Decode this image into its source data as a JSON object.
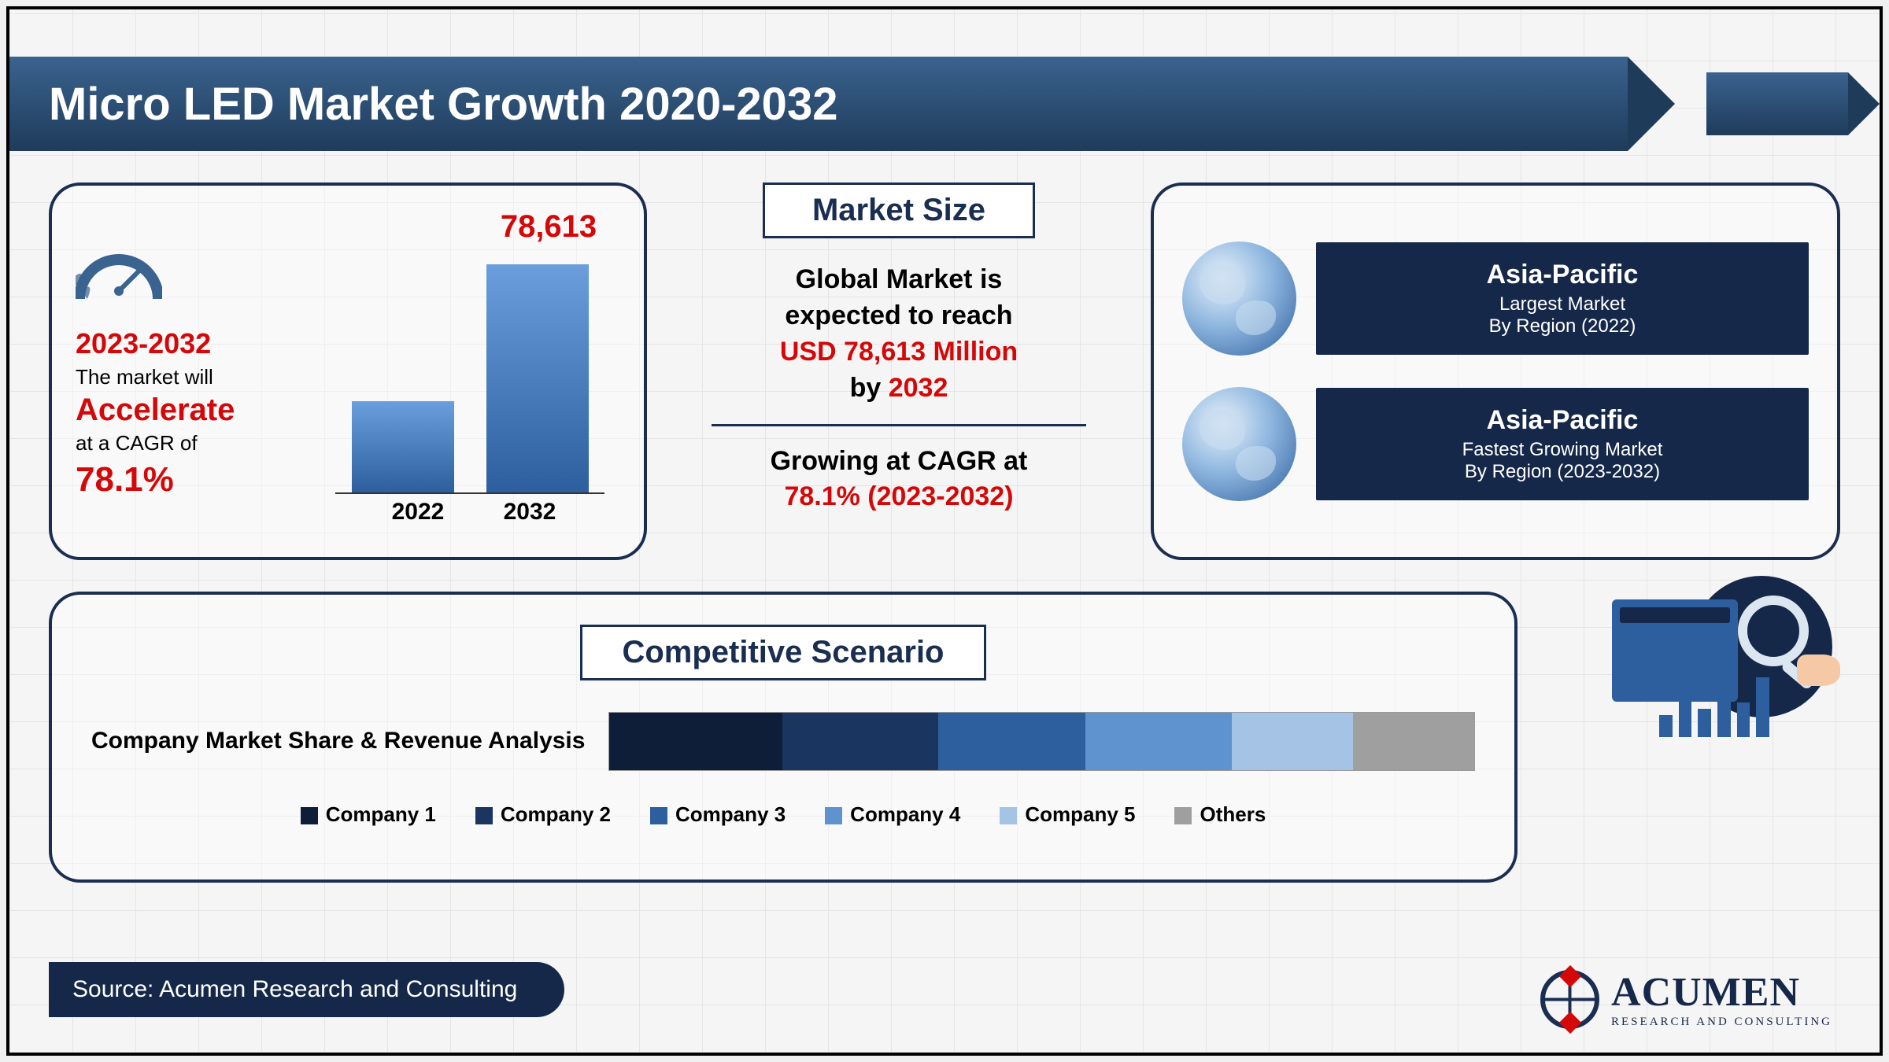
{
  "title": "Micro LED Market Growth 2020-2032",
  "colors": {
    "banner_gradient_top": "#3a638f",
    "banner_gradient_bottom": "#1f3b5a",
    "panel_border": "#1a2e52",
    "accent_red": "#d40808",
    "badge_bg": "#16284a",
    "bar_gradient_top": "#6a9edc",
    "bar_gradient_bottom": "#2d5f9e",
    "page_bg": "#f5f5f5"
  },
  "cagr_box": {
    "period": "2023-2032",
    "text_line1": "The market will",
    "accelerate_word": "Accelerate",
    "text_line2": "at a CAGR of",
    "cagr_value": "78.1%",
    "bar_chart": {
      "type": "bar",
      "top_label": "78,613",
      "bars": [
        {
          "year": "2022",
          "height_pct": 40
        },
        {
          "year": "2032",
          "height_pct": 100
        }
      ],
      "bar_colors": [
        "#4a7ab5",
        "#4a7ab5"
      ]
    }
  },
  "market_size": {
    "title": "Market Size",
    "line1": "Global Market is",
    "line2": "expected to reach",
    "value_line": "USD 78,613 Million",
    "by_line_prefix": "by ",
    "by_year": "2032",
    "cagr_line1": "Growing at CAGR at",
    "cagr_line2": "78.1% (2023-2032)"
  },
  "regions": [
    {
      "name": "Asia-Pacific",
      "desc1": "Largest Market",
      "desc2": "By Region (2022)"
    },
    {
      "name": "Asia-Pacific",
      "desc1": "Fastest Growing Market",
      "desc2": "By Region (2023-2032)"
    }
  ],
  "competitive": {
    "title": "Competitive Scenario",
    "label": "Company Market Share & Revenue Analysis",
    "type": "stacked-bar",
    "segments": [
      {
        "label": "Company 1",
        "color": "#0f1e38",
        "pct": 20
      },
      {
        "label": "Company 2",
        "color": "#1a3660",
        "pct": 18
      },
      {
        "label": "Company 3",
        "color": "#2d5f9e",
        "pct": 17
      },
      {
        "label": "Company 4",
        "color": "#5e93cf",
        "pct": 17
      },
      {
        "label": "Company 5",
        "color": "#a5c3e4",
        "pct": 14
      },
      {
        "label": "Others",
        "color": "#9f9f9f",
        "pct": 14
      }
    ]
  },
  "source": "Source: Acumen Research and Consulting",
  "logo": {
    "name": "ACUMEN",
    "subtitle": "RESEARCH AND CONSULTING"
  }
}
